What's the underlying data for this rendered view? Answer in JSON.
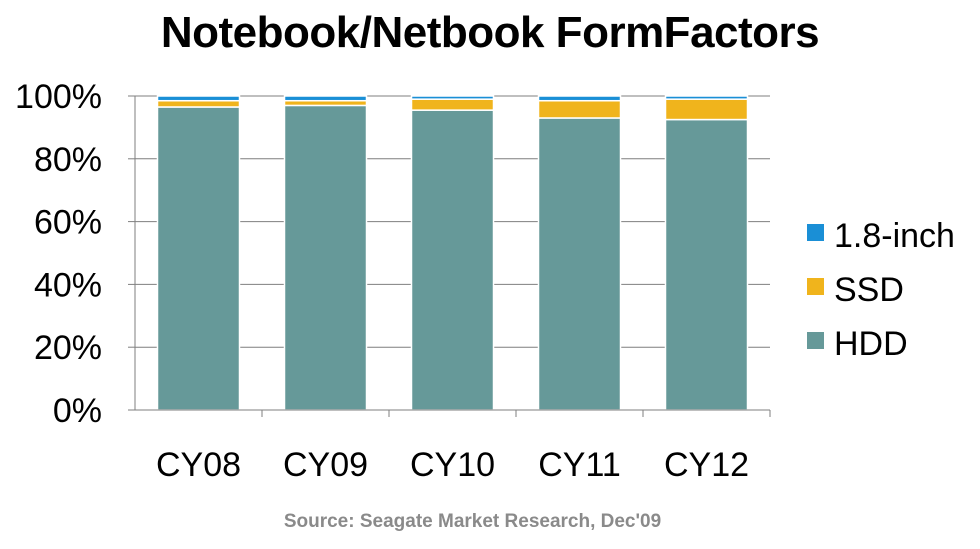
{
  "chart_data": {
    "type": "bar",
    "stacked": true,
    "title": "Notebook/Netbook FormFactors",
    "categories": [
      "CY08",
      "CY09",
      "CY10",
      "CY11",
      "CY12"
    ],
    "series": [
      {
        "name": "HDD",
        "color": "#669999",
        "values": [
          96.5,
          97,
          95.5,
          93,
          92.5
        ]
      },
      {
        "name": "SSD",
        "color": "#f0b41c",
        "values": [
          2,
          1.5,
          3.5,
          5.5,
          6.5
        ]
      },
      {
        "name": "1.8-inch",
        "color": "#1a8fd6",
        "values": [
          1.5,
          1.5,
          1,
          1.5,
          1
        ]
      }
    ],
    "ylim": [
      0,
      100
    ],
    "yticks": [
      "0%",
      "20%",
      "40%",
      "60%",
      "80%",
      "100%"
    ],
    "grid": true,
    "legend": "right",
    "legend_order": [
      "1.8-inch",
      "SSD",
      "HDD"
    ]
  },
  "source": "Source: Seagate Market Research, Dec'09"
}
